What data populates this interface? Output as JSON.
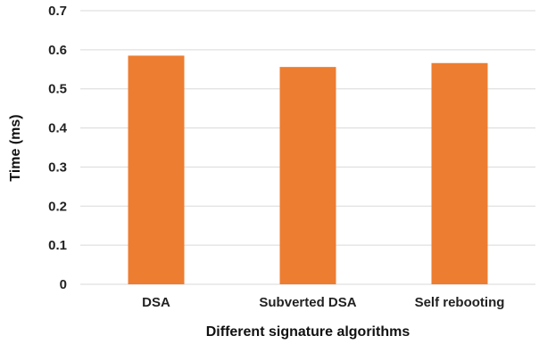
{
  "chart_data": {
    "type": "bar",
    "categories": [
      "DSA",
      "Subverted DSA",
      "Self rebooting"
    ],
    "values": [
      0.585,
      0.556,
      0.566
    ],
    "xlabel": "Different signature algorithms",
    "ylabel": "Time (ms)",
    "ylim": [
      0,
      0.7
    ],
    "yticks": [
      "0",
      "0.1",
      "0.2",
      "0.3",
      "0.4",
      "0.5",
      "0.6",
      "0.7"
    ],
    "grid": true,
    "bar_color": "#ED7D31",
    "grid_color": "#D9D9D9"
  }
}
